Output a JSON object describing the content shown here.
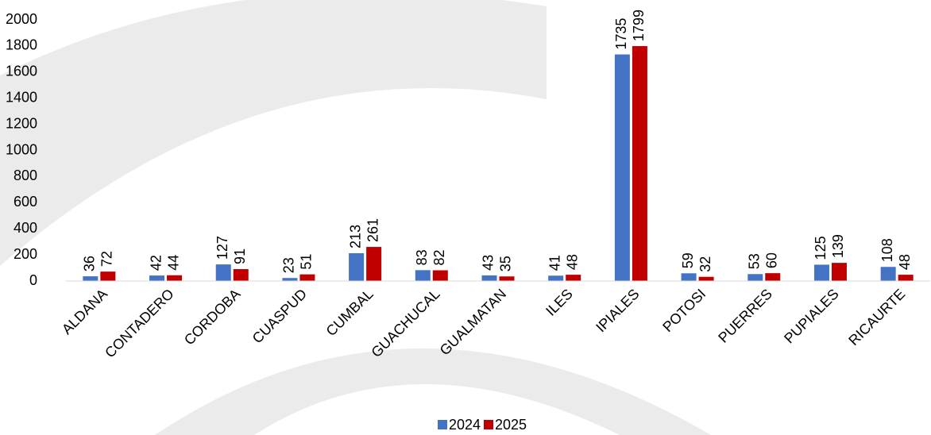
{
  "chart_data": {
    "type": "bar",
    "categories": [
      "ALDANA",
      "CONTADERO",
      "CORDOBA",
      "CUASPUD",
      "CUMBAL",
      "GUACHUCAL",
      "GUALMATAN",
      "ILES",
      "IPIALES",
      "POTOSI",
      "PUERRES",
      "PUPIALES",
      "RICAURTE"
    ],
    "series": [
      {
        "name": "2024",
        "color": "#4472c4",
        "values": [
          36,
          42,
          127,
          23,
          213,
          83,
          43,
          41,
          1735,
          59,
          53,
          125,
          108
        ]
      },
      {
        "name": "2025",
        "color": "#c00000",
        "values": [
          72,
          44,
          91,
          51,
          261,
          82,
          35,
          48,
          1799,
          32,
          60,
          139,
          48
        ]
      }
    ],
    "ylim": [
      0,
      2000
    ],
    "yticks": [
      0,
      200,
      400,
      600,
      800,
      1000,
      1200,
      1400,
      1600,
      1800,
      2000
    ],
    "grid": false,
    "legend": "bottom"
  }
}
